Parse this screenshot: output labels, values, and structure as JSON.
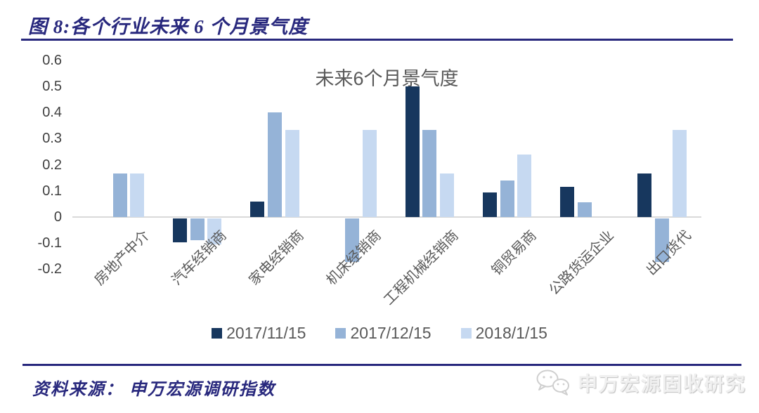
{
  "header": {
    "title": "图 8:各个行业未来 6 个月景气度"
  },
  "chart_data": {
    "type": "bar",
    "title": "未来6个月景气度",
    "categories": [
      "房地产中介",
      "汽车经销商",
      "家电经销商",
      "机床经销商",
      "工程机械经销商",
      "铜贸易商",
      "公路货运企业",
      "出口货代"
    ],
    "series": [
      {
        "name": "2017/11/15",
        "color": "#17375e",
        "values": [
          0,
          -0.091,
          0.06,
          0,
          0.5,
          0.095,
          0.115,
          0.167
        ]
      },
      {
        "name": "2017/12/15",
        "color": "#95b3d7",
        "values": [
          0.167,
          -0.083,
          0.4,
          -0.167,
          0.333,
          0.14,
          0.057,
          -0.167
        ]
      },
      {
        "name": "2018/1/15",
        "color": "#c6d9f1",
        "values": [
          0.167,
          -0.1,
          0.333,
          0.333,
          0.167,
          0.238,
          0,
          0.333
        ]
      }
    ],
    "y_ticks": [
      "0.6",
      "0.5",
      "0.4",
      "0.3",
      "0.2",
      "0.1",
      "0",
      "-0.1",
      "-0.2"
    ],
    "ylim": [
      -0.2,
      0.6
    ],
    "xlabel": "",
    "ylabel": "",
    "grid": false,
    "legend_position": "bottom",
    "axis_line_color": "#d9d9d9"
  },
  "footer": {
    "source_text": "资料来源： 申万宏源调研指数",
    "watermark_text": "申万宏源固收研究",
    "watermark_icon": "wechat-chat-bubbles-icon"
  },
  "colors": {
    "header_navy": "#28287d",
    "text_gray": "#595959",
    "tick_gray": "#404040",
    "watermark_gray": "#cfcfcf"
  }
}
